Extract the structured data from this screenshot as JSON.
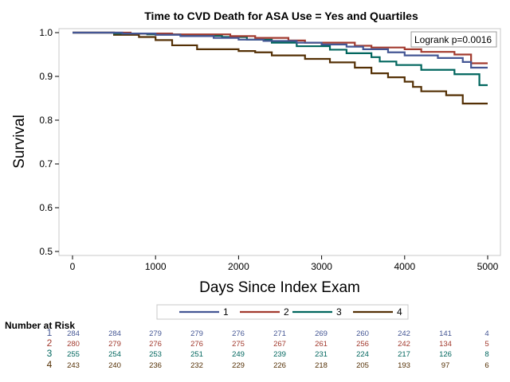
{
  "chart_data": {
    "type": "line",
    "title": "Time to CVD Death for ASA Use  = Yes and Quartiles",
    "xlabel": "Days Since Index Exam",
    "ylabel": "Survival",
    "xlim": [
      0,
      5000
    ],
    "ylim": [
      0.5,
      1.0
    ],
    "x_ticks": [
      0,
      1000,
      2000,
      3000,
      4000,
      5000
    ],
    "y_ticks": [
      0.5,
      0.6,
      0.7,
      0.8,
      0.9,
      1.0
    ],
    "x_tick_labels": [
      "0",
      "1000",
      "2000",
      "3000",
      "4000",
      "5000"
    ],
    "y_tick_labels": [
      "0.5",
      "0.6",
      "0.7",
      "0.8",
      "0.9",
      "1.0"
    ],
    "grid": false,
    "legend_position": "bottom",
    "annotation": "Logrank p=0.0016",
    "series": [
      {
        "name": "1",
        "color": "#445694",
        "steps": [
          [
            0,
            1.0
          ],
          [
            600,
            0.998
          ],
          [
            1000,
            0.995
          ],
          [
            1300,
            0.992
          ],
          [
            1700,
            0.988
          ],
          [
            2000,
            0.984
          ],
          [
            2300,
            0.981
          ],
          [
            2700,
            0.977
          ],
          [
            3000,
            0.973
          ],
          [
            3300,
            0.968
          ],
          [
            3500,
            0.962
          ],
          [
            3800,
            0.955
          ],
          [
            4000,
            0.948
          ],
          [
            4400,
            0.942
          ],
          [
            4700,
            0.933
          ],
          [
            4800,
            0.92
          ],
          [
            5000,
            0.92
          ]
        ]
      },
      {
        "name": "2",
        "color": "#A23A2E",
        "steps": [
          [
            0,
            1.0
          ],
          [
            700,
            0.998
          ],
          [
            1200,
            0.996
          ],
          [
            1900,
            0.992
          ],
          [
            2200,
            0.988
          ],
          [
            2600,
            0.982
          ],
          [
            2800,
            0.977
          ],
          [
            3400,
            0.97
          ],
          [
            3600,
            0.966
          ],
          [
            4000,
            0.962
          ],
          [
            4200,
            0.956
          ],
          [
            4600,
            0.95
          ],
          [
            4800,
            0.93
          ],
          [
            5000,
            0.93
          ]
        ]
      },
      {
        "name": "3",
        "color": "#01665E",
        "steps": [
          [
            0,
            1.0
          ],
          [
            500,
            0.998
          ],
          [
            900,
            0.996
          ],
          [
            1300,
            0.993
          ],
          [
            1800,
            0.99
          ],
          [
            2100,
            0.984
          ],
          [
            2400,
            0.977
          ],
          [
            2700,
            0.969
          ],
          [
            3100,
            0.961
          ],
          [
            3300,
            0.953
          ],
          [
            3600,
            0.944
          ],
          [
            3700,
            0.934
          ],
          [
            3900,
            0.926
          ],
          [
            4200,
            0.915
          ],
          [
            4600,
            0.905
          ],
          [
            4900,
            0.88
          ],
          [
            5000,
            0.88
          ]
        ]
      },
      {
        "name": "4",
        "color": "#543005",
        "steps": [
          [
            0,
            1.0
          ],
          [
            500,
            0.995
          ],
          [
            800,
            0.99
          ],
          [
            1000,
            0.983
          ],
          [
            1200,
            0.971
          ],
          [
            1500,
            0.962
          ],
          [
            2000,
            0.958
          ],
          [
            2200,
            0.955
          ],
          [
            2400,
            0.948
          ],
          [
            2800,
            0.94
          ],
          [
            3100,
            0.932
          ],
          [
            3400,
            0.92
          ],
          [
            3600,
            0.907
          ],
          [
            3800,
            0.898
          ],
          [
            4000,
            0.888
          ],
          [
            4100,
            0.876
          ],
          [
            4200,
            0.866
          ],
          [
            4500,
            0.857
          ],
          [
            4700,
            0.838
          ],
          [
            5000,
            0.838
          ]
        ]
      }
    ],
    "risk_table": {
      "header": "Number at Risk",
      "rows": [
        {
          "label": "1",
          "color": "#445694",
          "values": [
            "284",
            "284",
            "279",
            "279",
            "276",
            "271",
            "269",
            "260",
            "242",
            "141",
            "4"
          ]
        },
        {
          "label": "2",
          "color": "#A23A2E",
          "values": [
            "280",
            "279",
            "276",
            "276",
            "275",
            "267",
            "261",
            "256",
            "242",
            "134",
            "5"
          ]
        },
        {
          "label": "3",
          "color": "#01665E",
          "values": [
            "255",
            "254",
            "253",
            "251",
            "249",
            "239",
            "231",
            "224",
            "217",
            "126",
            "8"
          ]
        },
        {
          "label": "4",
          "color": "#543005",
          "values": [
            "243",
            "240",
            "236",
            "232",
            "229",
            "226",
            "218",
            "205",
            "193",
            "97",
            "6"
          ]
        }
      ]
    }
  }
}
